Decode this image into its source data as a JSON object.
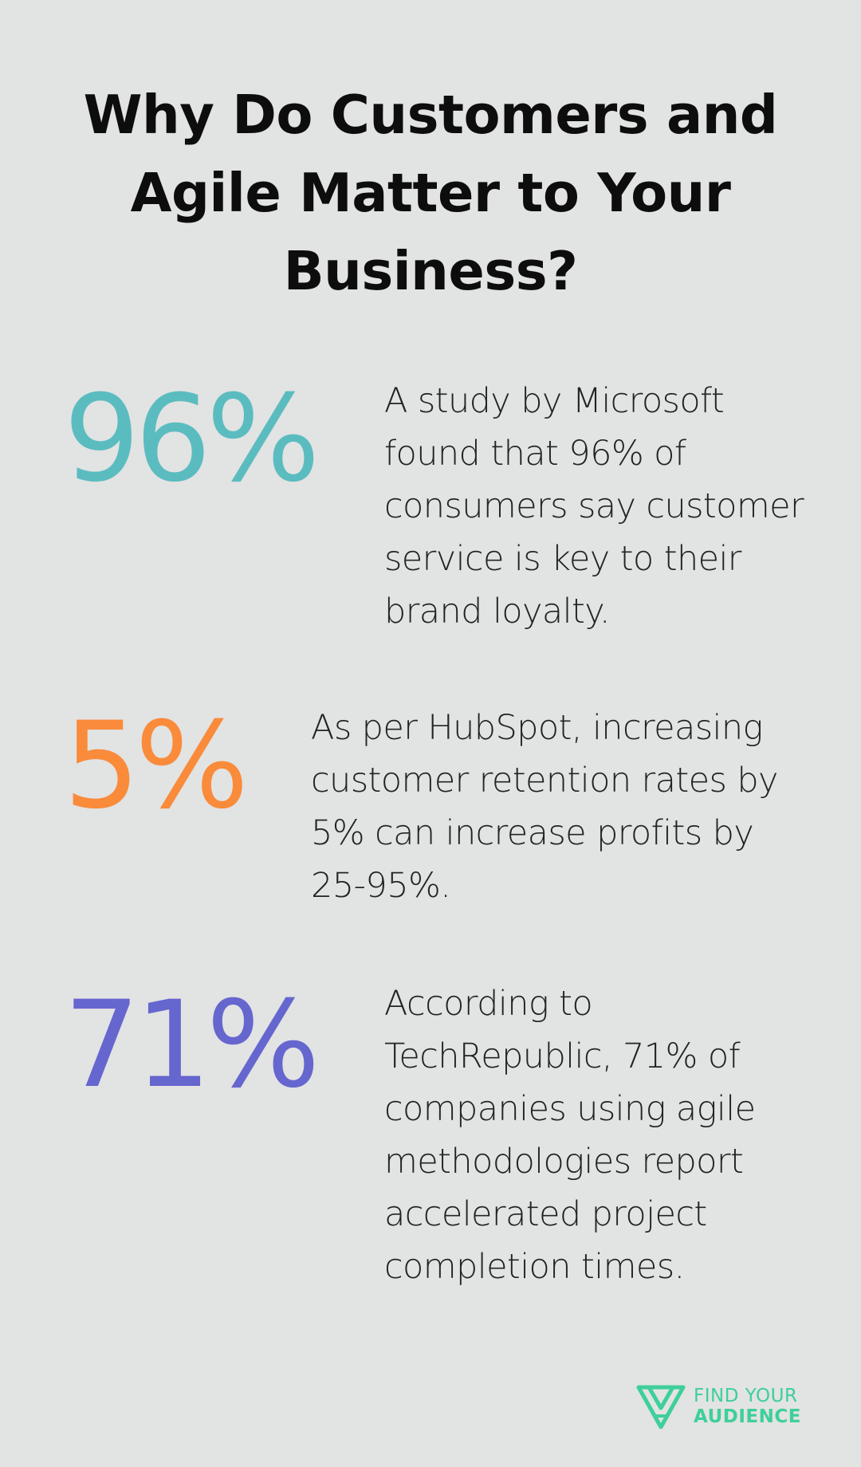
{
  "title": "Why Do Customers and Agile Matter to Your Business?",
  "colors": {
    "background": "#e2e3e3",
    "stat_1": "#5bbcc0",
    "stat_2": "#f98b3b",
    "stat_3": "#6666cf",
    "brand": "#3ecf9a"
  },
  "stats": [
    {
      "value": "96%",
      "text": "A study by Microsoft found that 96% of consumers say customer service is key to their brand loyalty."
    },
    {
      "value": "5%",
      "text": "As per HubSpot, increasing customer retention rates by 5% can increase profits by 25-95%."
    },
    {
      "value": "71%",
      "text": "According to TechRepublic, 71% of companies using agile methodologies report accelerated project completion times."
    }
  ],
  "logo": {
    "line1": "FIND YOUR",
    "line2": "AUDIENCE",
    "icon": "triangle-logo-icon"
  }
}
